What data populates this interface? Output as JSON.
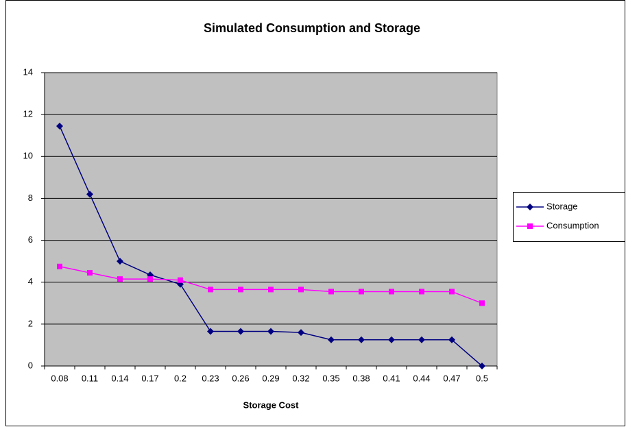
{
  "chart_data": {
    "type": "line",
    "title": "Simulated Consumption and Storage",
    "x_label": "Storage Cost",
    "categories": [
      "0.08",
      "0.11",
      "0.14",
      "0.17",
      "0.2",
      "0.23",
      "0.26",
      "0.29",
      "0.32",
      "0.35",
      "0.38",
      "0.41",
      "0.44",
      "0.47",
      "0.5"
    ],
    "series": [
      {
        "name": "Storage",
        "color": "#000080",
        "marker": "diamond",
        "values": [
          11.45,
          8.2,
          5.0,
          4.35,
          3.9,
          1.65,
          1.65,
          1.65,
          1.6,
          1.25,
          1.25,
          1.25,
          1.25,
          1.25,
          0
        ]
      },
      {
        "name": "Consumption",
        "color": "#ff00ff",
        "marker": "square",
        "values": [
          4.75,
          4.45,
          4.15,
          4.15,
          4.1,
          3.65,
          3.65,
          3.65,
          3.65,
          3.55,
          3.55,
          3.55,
          3.55,
          3.55,
          3.0
        ]
      }
    ],
    "ylim": [
      0,
      14
    ],
    "yticks": [
      0,
      2,
      4,
      6,
      8,
      10,
      12,
      14
    ],
    "grid": true,
    "legend": "right"
  }
}
